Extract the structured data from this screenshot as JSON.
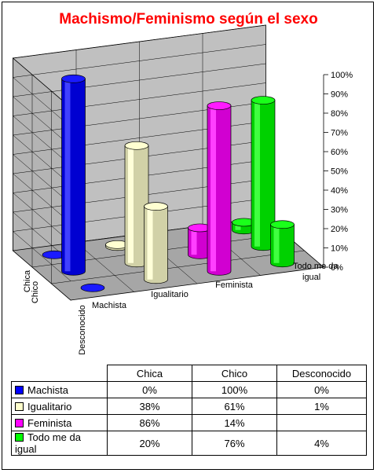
{
  "chart_data": {
    "type": "bar",
    "title": "Machismo/Feminismo según el sexo",
    "categories": [
      "Machista",
      "Igualitario",
      "Feminista",
      "Todo me da igual"
    ],
    "series": [
      {
        "name": "Chica",
        "values": [
          0,
          38,
          86,
          20
        ]
      },
      {
        "name": "Chico",
        "values": [
          100,
          61,
          14,
          76
        ]
      },
      {
        "name": "Desconocido",
        "values": [
          0,
          1,
          null,
          4
        ]
      }
    ],
    "category_colors": {
      "Machista": "#0000ff",
      "Igualitario": "#ffffcc",
      "Feminista": "#ff00ff",
      "Todo me da igual": "#00ff00"
    },
    "ylim": [
      0,
      100
    ],
    "yticks": [
      "100%",
      "90%",
      "80%",
      "70%",
      "60%",
      "50%",
      "40%",
      "30%",
      "20%",
      "10%",
      "0%"
    ],
    "grid": true,
    "table": {
      "columns": [
        "Chica",
        "Chico",
        "Desconocido"
      ],
      "rows": [
        {
          "label": "Machista",
          "cells": [
            "0%",
            "100%",
            "0%"
          ]
        },
        {
          "label": "Igualitario",
          "cells": [
            "38%",
            "61%",
            "1%"
          ]
        },
        {
          "label": "Feminista",
          "cells": [
            "86%",
            "14%",
            ""
          ]
        },
        {
          "label": "Todo me da igual",
          "cells": [
            "20%",
            "76%",
            "4%"
          ]
        }
      ]
    }
  }
}
